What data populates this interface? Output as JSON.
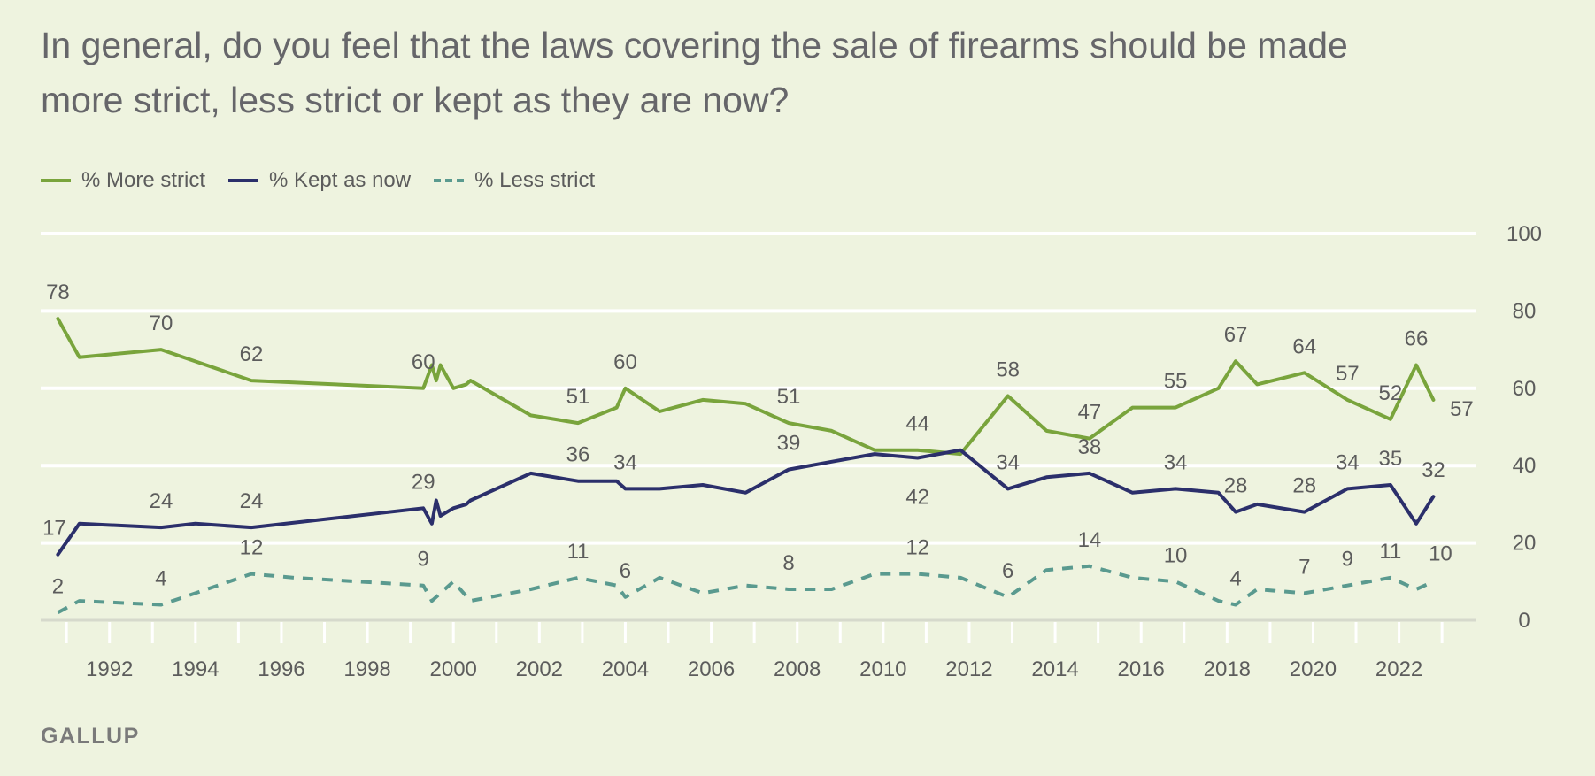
{
  "title": "In general, do you feel that the laws covering the sale of firearms should be made more strict, less strict or kept as they are now?",
  "footer": {
    "brand": "GALLUP"
  },
  "chart_data": {
    "type": "line",
    "title": "In general, do you feel that the laws covering the sale of firearms should be made more strict, less strict or kept as they are now?",
    "xlabel": "",
    "ylabel": "",
    "ylim": [
      0,
      100
    ],
    "xlim": [
      1990.4,
      2023.8
    ],
    "y_ticks": [
      0,
      20,
      40,
      60,
      80,
      100
    ],
    "x_ticks": [
      1992,
      1994,
      1996,
      1998,
      2000,
      2002,
      2004,
      2006,
      2008,
      2010,
      2012,
      2014,
      2016,
      2018,
      2020,
      2022
    ],
    "grid": true,
    "y_axis_position": "right",
    "legend_position": "top-left",
    "series": [
      {
        "name": "% More strict",
        "color": "#79a43c",
        "style": "solid",
        "points": [
          [
            1990.8,
            78
          ],
          [
            1991.3,
            68
          ],
          [
            1993.2,
            70
          ],
          [
            1995.3,
            62
          ],
          [
            1999.3,
            60
          ],
          [
            1999.5,
            66
          ],
          [
            1999.6,
            62
          ],
          [
            1999.7,
            66
          ],
          [
            2000.0,
            60
          ],
          [
            2000.3,
            61
          ],
          [
            2000.4,
            62
          ],
          [
            2001.8,
            53
          ],
          [
            2002.9,
            51
          ],
          [
            2003.8,
            55
          ],
          [
            2004.0,
            60
          ],
          [
            2004.8,
            54
          ],
          [
            2005.8,
            57
          ],
          [
            2006.8,
            56
          ],
          [
            2007.8,
            51
          ],
          [
            2008.8,
            49
          ],
          [
            2009.8,
            44
          ],
          [
            2010.8,
            44
          ],
          [
            2011.8,
            43
          ],
          [
            2012.9,
            58
          ],
          [
            2013.8,
            49
          ],
          [
            2014.8,
            47
          ],
          [
            2015.8,
            55
          ],
          [
            2016.8,
            55
          ],
          [
            2017.8,
            60
          ],
          [
            2018.2,
            67
          ],
          [
            2018.7,
            61
          ],
          [
            2019.8,
            64
          ],
          [
            2020.8,
            57
          ],
          [
            2021.8,
            52
          ],
          [
            2022.4,
            66
          ],
          [
            2022.8,
            57
          ]
        ],
        "labels": [
          [
            1990.8,
            78
          ],
          [
            1993.2,
            70
          ],
          [
            1995.3,
            62
          ],
          [
            1999.3,
            60
          ],
          [
            2002.9,
            51
          ],
          [
            2004.0,
            60
          ],
          [
            2007.8,
            51
          ],
          [
            2010.8,
            44
          ],
          [
            2012.9,
            58
          ],
          [
            2014.8,
            47
          ],
          [
            2016.8,
            55
          ],
          [
            2018.2,
            67
          ],
          [
            2019.8,
            64
          ],
          [
            2020.8,
            57
          ],
          [
            2021.8,
            52
          ],
          [
            2022.4,
            66
          ],
          [
            2022.8,
            57
          ]
        ]
      },
      {
        "name": "% Kept as now",
        "color": "#2b2f6b",
        "style": "solid",
        "points": [
          [
            1990.8,
            17
          ],
          [
            1991.3,
            25
          ],
          [
            1993.2,
            24
          ],
          [
            1994.0,
            25
          ],
          [
            1995.3,
            24
          ],
          [
            1999.3,
            29
          ],
          [
            1999.5,
            25
          ],
          [
            1999.6,
            31
          ],
          [
            1999.7,
            27
          ],
          [
            2000.0,
            29
          ],
          [
            2000.3,
            30
          ],
          [
            2000.4,
            31
          ],
          [
            2001.8,
            38
          ],
          [
            2002.9,
            36
          ],
          [
            2003.8,
            36
          ],
          [
            2004.0,
            34
          ],
          [
            2004.8,
            34
          ],
          [
            2005.8,
            35
          ],
          [
            2006.8,
            33
          ],
          [
            2007.8,
            39
          ],
          [
            2008.8,
            41
          ],
          [
            2009.8,
            43
          ],
          [
            2010.8,
            42
          ],
          [
            2011.8,
            44
          ],
          [
            2012.9,
            34
          ],
          [
            2013.8,
            37
          ],
          [
            2014.8,
            38
          ],
          [
            2015.8,
            33
          ],
          [
            2016.8,
            34
          ],
          [
            2017.8,
            33
          ],
          [
            2018.2,
            28
          ],
          [
            2018.7,
            30
          ],
          [
            2019.8,
            28
          ],
          [
            2020.8,
            34
          ],
          [
            2021.8,
            35
          ],
          [
            2022.4,
            25
          ],
          [
            2022.8,
            32
          ]
        ],
        "labels": [
          [
            1990.8,
            17
          ],
          [
            1993.2,
            24
          ],
          [
            1995.3,
            24
          ],
          [
            1999.3,
            29
          ],
          [
            2002.9,
            36
          ],
          [
            2004.0,
            34
          ],
          [
            2007.8,
            39
          ],
          [
            2010.8,
            42
          ],
          [
            2012.9,
            34
          ],
          [
            2014.8,
            38
          ],
          [
            2016.8,
            34
          ],
          [
            2018.2,
            28
          ],
          [
            2019.8,
            28
          ],
          [
            2020.8,
            34
          ],
          [
            2021.8,
            35
          ],
          [
            2022.8,
            32
          ]
        ]
      },
      {
        "name": "% Less strict",
        "color": "#5a9a8f",
        "style": "dashed",
        "points": [
          [
            1990.8,
            2
          ],
          [
            1991.3,
            5
          ],
          [
            1993.2,
            4
          ],
          [
            1994.0,
            7
          ],
          [
            1995.3,
            12
          ],
          [
            1996.3,
            11
          ],
          [
            1999.3,
            9
          ],
          [
            1999.5,
            5
          ],
          [
            2000.0,
            10
          ],
          [
            2000.4,
            5
          ],
          [
            2001.8,
            8
          ],
          [
            2002.9,
            11
          ],
          [
            2003.8,
            9
          ],
          [
            2004.0,
            6
          ],
          [
            2004.8,
            11
          ],
          [
            2005.8,
            7
          ],
          [
            2006.8,
            9
          ],
          [
            2007.8,
            8
          ],
          [
            2008.8,
            8
          ],
          [
            2009.8,
            12
          ],
          [
            2010.8,
            12
          ],
          [
            2011.8,
            11
          ],
          [
            2012.9,
            6
          ],
          [
            2013.8,
            13
          ],
          [
            2014.8,
            14
          ],
          [
            2015.8,
            11
          ],
          [
            2016.8,
            10
          ],
          [
            2017.8,
            5
          ],
          [
            2018.2,
            4
          ],
          [
            2018.7,
            8
          ],
          [
            2019.8,
            7
          ],
          [
            2020.8,
            9
          ],
          [
            2021.8,
            11
          ],
          [
            2022.4,
            8
          ],
          [
            2022.8,
            10
          ]
        ],
        "labels": [
          [
            1990.8,
            2
          ],
          [
            1993.2,
            4
          ],
          [
            1995.3,
            12
          ],
          [
            1999.3,
            9
          ],
          [
            2002.9,
            11
          ],
          [
            2004.0,
            6
          ],
          [
            2007.8,
            8
          ],
          [
            2010.8,
            12
          ],
          [
            2012.9,
            6
          ],
          [
            2014.8,
            14
          ],
          [
            2016.8,
            10
          ],
          [
            2018.2,
            4
          ],
          [
            2019.8,
            7
          ],
          [
            2020.8,
            9
          ],
          [
            2021.8,
            11
          ],
          [
            2022.8,
            10
          ]
        ]
      }
    ]
  }
}
